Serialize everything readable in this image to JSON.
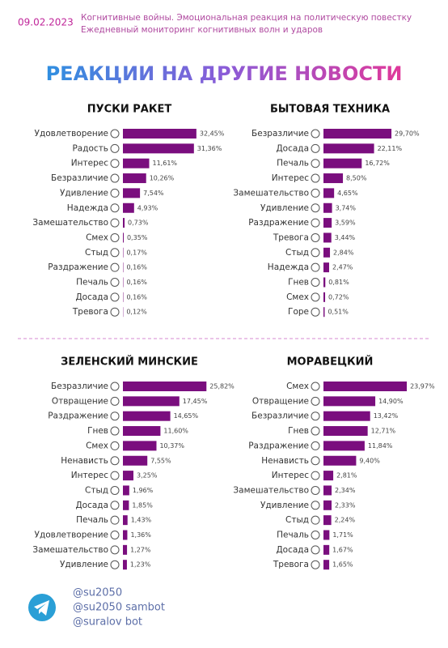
{
  "date": "09.02.2023",
  "header_lines": [
    "Когнитивные войны. Эмоциональная реакция на политическую повестку",
    "Ежедневный мониторинг когнитивных волн и ударов"
  ],
  "title": "РЕАКЦИИ НА ДРУГИЕ НОВОСТИ",
  "footer": [
    "@su2050",
    "@su2050 sambot",
    "@suralov bot"
  ],
  "chart_data": [
    {
      "type": "bar",
      "orientation": "horizontal",
      "title": "ПУСКИ РАКЕТ",
      "color": "#7a0e7e",
      "categories": [
        "Удовлетворение",
        "Радость",
        "Интерес",
        "Безразличие",
        "Удивление",
        "Надежда",
        "Замешательство",
        "Смех",
        "Стыд",
        "Раздражение",
        "Печаль",
        "Досада",
        "Тревога"
      ],
      "values": [
        32.45,
        31.36,
        11.61,
        10.26,
        7.54,
        4.93,
        0.73,
        0.35,
        0.17,
        0.16,
        0.16,
        0.16,
        0.12
      ],
      "value_labels": [
        "32,45%",
        "31,36%",
        "11,61%",
        "10,26%",
        "7,54%",
        "4,93%",
        "0,73%",
        "0,35%",
        "0,17%",
        "0,16%",
        "0,16%",
        "0,16%",
        "0,12%"
      ]
    },
    {
      "type": "bar",
      "orientation": "horizontal",
      "title": "БЫТОВАЯ ТЕХНИКА",
      "color": "#7a0e7e",
      "categories": [
        "Безразличие",
        "Досада",
        "Печаль",
        "Интерес",
        "Замешательство",
        "Удивление",
        "Раздражение",
        "Тревога",
        "Стыд",
        "Надежда",
        "Гнев",
        "Смех",
        "Горе"
      ],
      "values": [
        29.7,
        22.11,
        16.72,
        8.5,
        4.65,
        3.74,
        3.59,
        3.44,
        2.84,
        2.47,
        0.81,
        0.72,
        0.51
      ],
      "value_labels": [
        "29,70%",
        "22,11%",
        "16,72%",
        "8,50%",
        "4,65%",
        "3,74%",
        "3,59%",
        "3,44%",
        "2,84%",
        "2,47%",
        "0,81%",
        "0,72%",
        "0,51%"
      ]
    },
    {
      "type": "bar",
      "orientation": "horizontal",
      "title": "ЗЕЛЕНСКИЙ МИНСКИЕ",
      "color": "#7a0e7e",
      "categories": [
        "Безразличие",
        "Отвращение",
        "Раздражение",
        "Гнев",
        "Смех",
        "Ненависть",
        "Интерес",
        "Стыд",
        "Досада",
        "Печаль",
        "Удовлетворение",
        "Замешательство",
        "Удивление"
      ],
      "values": [
        25.82,
        17.45,
        14.65,
        11.6,
        10.37,
        7.55,
        3.25,
        1.96,
        1.85,
        1.43,
        1.36,
        1.27,
        1.23
      ],
      "value_labels": [
        "25,82%",
        "17,45%",
        "14,65%",
        "11,60%",
        "10,37%",
        "7,55%",
        "3,25%",
        "1,96%",
        "1,85%",
        "1,43%",
        "1,36%",
        "1,27%",
        "1,23%"
      ]
    },
    {
      "type": "bar",
      "orientation": "horizontal",
      "title": "МОРАВЕЦКИЙ",
      "color": "#7a0e7e",
      "categories": [
        "Смех",
        "Отвращение",
        "Безразличие",
        "Гнев",
        "Раздражение",
        "Ненависть",
        "Интерес",
        "Замешательство",
        "Удивление",
        "Стыд",
        "Печаль",
        "Досада",
        "Тревога"
      ],
      "values": [
        23.97,
        14.9,
        13.42,
        12.71,
        11.84,
        9.4,
        2.81,
        2.34,
        2.33,
        2.24,
        1.71,
        1.67,
        1.65
      ],
      "value_labels": [
        "23,97%",
        "14,90%",
        "13,42%",
        "12,71%",
        "11,84%",
        "9,40%",
        "2,81%",
        "2,34%",
        "2,33%",
        "2,24%",
        "1,71%",
        "1,67%",
        "1,65%"
      ]
    }
  ]
}
